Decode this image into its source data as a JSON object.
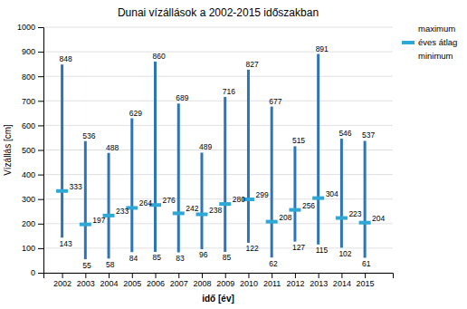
{
  "chart_data": {
    "type": "range",
    "title": "Dunai vízállások a 2002-2015 időszakban",
    "xlabel": "idő [év]",
    "ylabel": "Vízállás [cm]",
    "x": [
      2002,
      2003,
      2004,
      2005,
      2006,
      2007,
      2008,
      2009,
      2010,
      2011,
      2012,
      2013,
      2014,
      2015
    ],
    "color": "#2e75b6",
    "series": [
      {
        "name": "maximum",
        "values": [
          848,
          536,
          488,
          629,
          860,
          689,
          489,
          716,
          827,
          677,
          515,
          891,
          546,
          537
        ]
      },
      {
        "name": "éves átlag",
        "color": "#2ea8d5",
        "values": [
          333,
          197,
          233,
          264,
          276,
          242,
          238,
          280,
          299,
          208,
          256,
          304,
          223,
          204
        ]
      },
      {
        "name": "minimum",
        "values": [
          143,
          55,
          58,
          84,
          85,
          83,
          96,
          85,
          122,
          62,
          127,
          115,
          102,
          61
        ]
      }
    ],
    "xlim": [
      2001.2,
      2016.2
    ],
    "xticks": [
      2002,
      2003,
      2004,
      2005,
      2006,
      2007,
      2008,
      2009,
      2010,
      2011,
      2012,
      2013,
      2014,
      2015
    ],
    "ylim": [
      0,
      1000
    ],
    "yticks": [
      0,
      100,
      200,
      300,
      400,
      500,
      600,
      700,
      800,
      900,
      1000
    ],
    "grid": "y",
    "legend": "upper right",
    "data_labels": true
  }
}
